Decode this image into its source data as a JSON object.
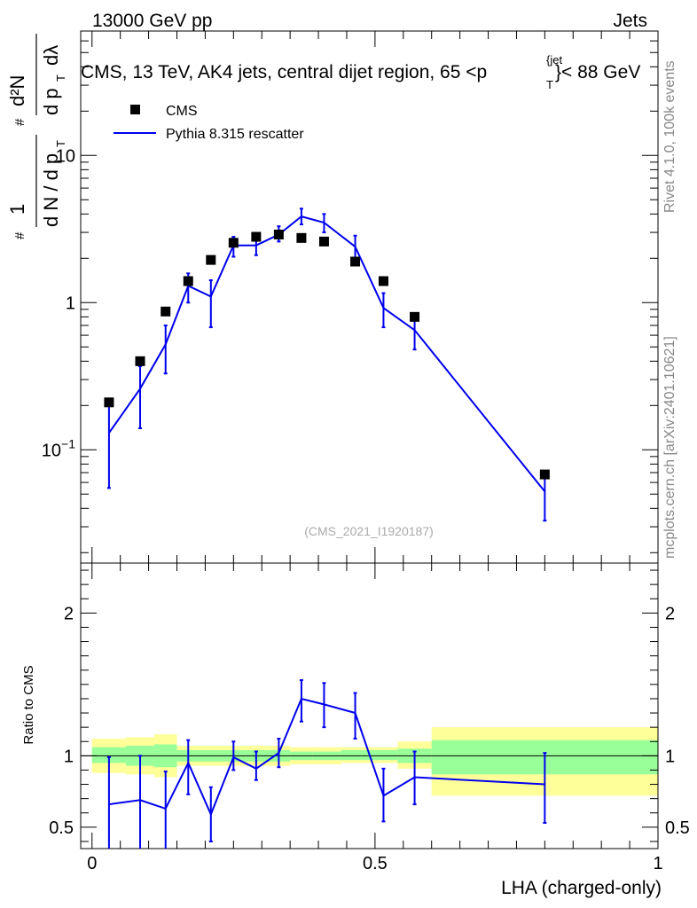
{
  "header": {
    "left": "13000 GeV pp",
    "right": "Jets"
  },
  "side": {
    "rivet": "Rivet 4.1.0,  100k events",
    "mcplots": "mcplots.cern.ch [arXiv:2401.10621]"
  },
  "colors": {
    "mc": "#0000ee",
    "data": "#000000",
    "band_inner": "#99ff99",
    "band_outer": "#ffff99"
  },
  "chart_data": [
    {
      "type": "scatter",
      "title": "CMS, 13 TeV, AK4 jets, central dijet region, 65 <p_T^{jet}< 88 GeV",
      "title_main": "CMS, 13 TeV, AK4 jets, central dijet region, 65 <p",
      "title_sup": "{jet",
      "title_sub": "T",
      "title_rest": "}< 88 GeV",
      "ylabel": "(1/dN/dp_T) d²N/dp_T dλ",
      "yscale": "log",
      "ylim": [
        0.017,
        70
      ],
      "xlim": [
        -0.02,
        1.0
      ],
      "y_ticks": [
        {
          "value": 0.1,
          "base": "10",
          "exp": "−1"
        },
        {
          "value": 1,
          "base": "1",
          "exp": ""
        },
        {
          "value": 10,
          "base": "10",
          "exp": ""
        }
      ],
      "watermark": "(CMS_2021_I1920187)",
      "legend": [
        {
          "name": "CMS",
          "style": "marker"
        },
        {
          "name": "Pythia 8.315 rescatter",
          "style": "line"
        }
      ],
      "series": [
        {
          "name": "CMS",
          "x": [
            0.03,
            0.085,
            0.13,
            0.17,
            0.21,
            0.25,
            0.29,
            0.33,
            0.37,
            0.41,
            0.465,
            0.515,
            0.57,
            0.8
          ],
          "values": [
            0.21,
            0.4,
            0.87,
            1.4,
            1.95,
            2.55,
            2.8,
            2.9,
            2.75,
            2.6,
            1.9,
            1.4,
            0.8,
            0.068
          ]
        },
        {
          "name": "Pythia 8.315 rescatter",
          "x": [
            0.03,
            0.085,
            0.13,
            0.17,
            0.21,
            0.25,
            0.29,
            0.33,
            0.37,
            0.41,
            0.465,
            0.515,
            0.57,
            0.8
          ],
          "values": [
            0.13,
            0.26,
            0.52,
            1.3,
            1.1,
            2.45,
            2.45,
            2.9,
            3.85,
            3.5,
            2.4,
            0.92,
            0.65,
            0.052
          ],
          "err_low": [
            0.055,
            0.14,
            0.33,
            1.0,
            0.68,
            2.05,
            2.1,
            2.6,
            3.4,
            3.0,
            1.9,
            0.68,
            0.48,
            0.033
          ],
          "err_high": [
            0.2,
            0.37,
            0.7,
            1.58,
            1.42,
            2.8,
            2.82,
            3.3,
            4.35,
            4.0,
            2.85,
            1.16,
            0.84,
            0.07
          ]
        }
      ]
    },
    {
      "type": "line",
      "ylabel": "Ratio to CMS",
      "xlabel": "LHA (charged-only)",
      "xlim": [
        -0.02,
        1.0
      ],
      "ylim": [
        0.35,
        2.35
      ],
      "x_ticks": [
        {
          "value": 0,
          "label": "0"
        },
        {
          "value": 0.5,
          "label": "0.5"
        },
        {
          "value": 1,
          "label": "1"
        }
      ],
      "y_ticks": [
        {
          "value": 0.5,
          "label": "0.5"
        },
        {
          "value": 1,
          "label": "1"
        },
        {
          "value": 2,
          "label": "2"
        }
      ],
      "reference": 1.0,
      "bands": [
        {
          "x0": 0.0,
          "x1": 0.06,
          "inner": [
            0.95,
            1.06
          ],
          "outer": [
            0.88,
            1.12
          ]
        },
        {
          "x0": 0.06,
          "x1": 0.11,
          "inner": [
            0.93,
            1.07
          ],
          "outer": [
            0.87,
            1.13
          ]
        },
        {
          "x0": 0.11,
          "x1": 0.15,
          "inner": [
            0.92,
            1.08
          ],
          "outer": [
            0.85,
            1.15
          ]
        },
        {
          "x0": 0.15,
          "x1": 0.19,
          "inner": [
            0.96,
            1.04
          ],
          "outer": [
            0.93,
            1.07
          ]
        },
        {
          "x0": 0.19,
          "x1": 0.23,
          "inner": [
            0.96,
            1.04
          ],
          "outer": [
            0.93,
            1.07
          ]
        },
        {
          "x0": 0.23,
          "x1": 0.27,
          "inner": [
            0.96,
            1.04
          ],
          "outer": [
            0.93,
            1.07
          ]
        },
        {
          "x0": 0.27,
          "x1": 0.31,
          "inner": [
            0.96,
            1.04
          ],
          "outer": [
            0.93,
            1.07
          ]
        },
        {
          "x0": 0.31,
          "x1": 0.35,
          "inner": [
            0.96,
            1.04
          ],
          "outer": [
            0.93,
            1.07
          ]
        },
        {
          "x0": 0.35,
          "x1": 0.39,
          "inner": [
            0.97,
            1.03
          ],
          "outer": [
            0.94,
            1.06
          ]
        },
        {
          "x0": 0.39,
          "x1": 0.44,
          "inner": [
            0.97,
            1.03
          ],
          "outer": [
            0.94,
            1.06
          ]
        },
        {
          "x0": 0.44,
          "x1": 0.49,
          "inner": [
            0.97,
            1.04
          ],
          "outer": [
            0.95,
            1.06
          ]
        },
        {
          "x0": 0.49,
          "x1": 0.54,
          "inner": [
            0.97,
            1.04
          ],
          "outer": [
            0.95,
            1.06
          ]
        },
        {
          "x0": 0.54,
          "x1": 0.6,
          "inner": [
            0.95,
            1.05
          ],
          "outer": [
            0.91,
            1.1
          ]
        },
        {
          "x0": 0.6,
          "x1": 1.0,
          "inner": [
            0.87,
            1.11
          ],
          "outer": [
            0.72,
            1.2
          ]
        }
      ],
      "series": [
        {
          "name": "Pythia 8.315 rescatter / CMS",
          "x": [
            0.03,
            0.085,
            0.13,
            0.17,
            0.21,
            0.25,
            0.29,
            0.33,
            0.37,
            0.41,
            0.465,
            0.515,
            0.57,
            0.8
          ],
          "values": [
            0.66,
            0.69,
            0.63,
            0.95,
            0.59,
            0.99,
            0.91,
            1.02,
            1.4,
            1.36,
            1.3,
            0.72,
            0.85,
            0.8
          ],
          "err_low": [
            0.3,
            0.3,
            0.3,
            0.73,
            0.4,
            0.9,
            0.83,
            0.92,
            1.24,
            1.2,
            1.12,
            0.54,
            0.66,
            0.53
          ],
          "err_high": [
            0.99,
            1.0,
            0.89,
            1.11,
            0.78,
            1.1,
            1.03,
            1.12,
            1.53,
            1.51,
            1.44,
            0.91,
            1.03,
            1.02
          ]
        }
      ]
    }
  ]
}
